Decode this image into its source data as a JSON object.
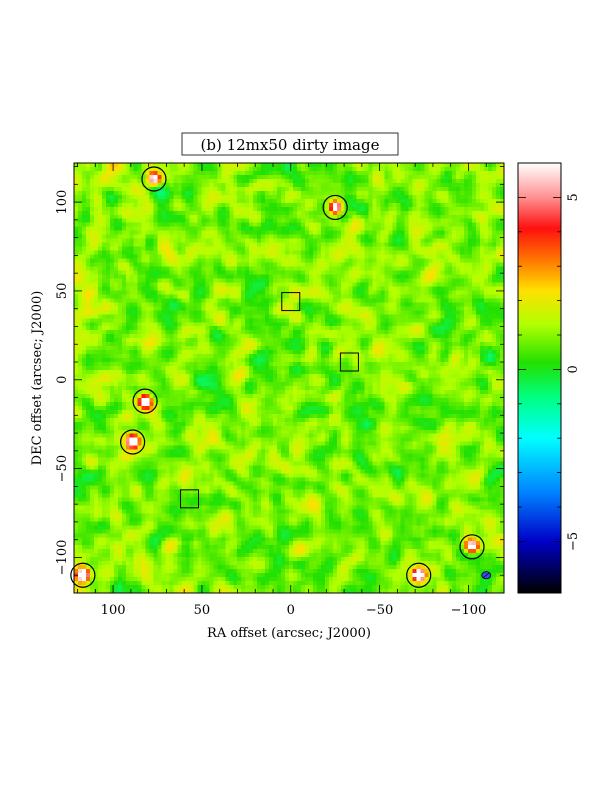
{
  "chart_data": {
    "type": "heatmap",
    "title": "(b) 12mx50 dirty image",
    "xlabel": "RA offset (arcsec; J2000)",
    "ylabel": "DEC offset (arcsec; J2000)",
    "xlim": [
      122,
      -120
    ],
    "ylim": [
      -120,
      122
    ],
    "x_ticks": [
      100,
      50,
      0,
      -50,
      -100
    ],
    "x_tick_labels": [
      "100",
      "50",
      "0",
      "−50",
      "−100"
    ],
    "y_ticks": [
      100,
      50,
      0,
      -50,
      -100
    ],
    "y_tick_labels": [
      "100",
      "50",
      "0",
      "−50",
      "−100"
    ],
    "colorbar": {
      "range": [
        -6.5,
        6
      ],
      "ticks": [
        5,
        0,
        -5
      ],
      "tick_labels": [
        "5",
        "0",
        "−5"
      ],
      "stops": [
        {
          "v": -6.5,
          "color": "#000000"
        },
        {
          "v": -5.0,
          "color": "#0000c8"
        },
        {
          "v": -3.6,
          "color": "#0080ff"
        },
        {
          "v": -2.0,
          "color": "#00ffff"
        },
        {
          "v": -0.8,
          "color": "#00ff80"
        },
        {
          "v": 0.2,
          "color": "#22e000"
        },
        {
          "v": 1.3,
          "color": "#b0ff00"
        },
        {
          "v": 2.3,
          "color": "#ffe000"
        },
        {
          "v": 3.1,
          "color": "#ff8000"
        },
        {
          "v": 4.1,
          "color": "#ff1010"
        },
        {
          "v": 5.0,
          "color": "#ff9090"
        },
        {
          "v": 6.0,
          "color": "#ffffff"
        }
      ]
    },
    "sources_circled": [
      {
        "ra": 117,
        "dec": -110,
        "peak": 6.0
      },
      {
        "ra": 77,
        "dec": 113,
        "peak": 4.2
      },
      {
        "ra": -25,
        "dec": 97,
        "peak": 4.0
      },
      {
        "ra": 82,
        "dec": -12,
        "peak": 6.0
      },
      {
        "ra": 89,
        "dec": -35,
        "peak": 6.0
      },
      {
        "ra": -102,
        "dec": -94,
        "peak": 4.3
      },
      {
        "ra": -72,
        "dec": -110,
        "peak": 6.0
      }
    ],
    "boxes": [
      {
        "ra": 0,
        "dec": 44
      },
      {
        "ra": -33,
        "dec": 10
      },
      {
        "ra": 57,
        "dec": -67
      }
    ],
    "beam": {
      "ra": -110,
      "dec": -110
    }
  }
}
